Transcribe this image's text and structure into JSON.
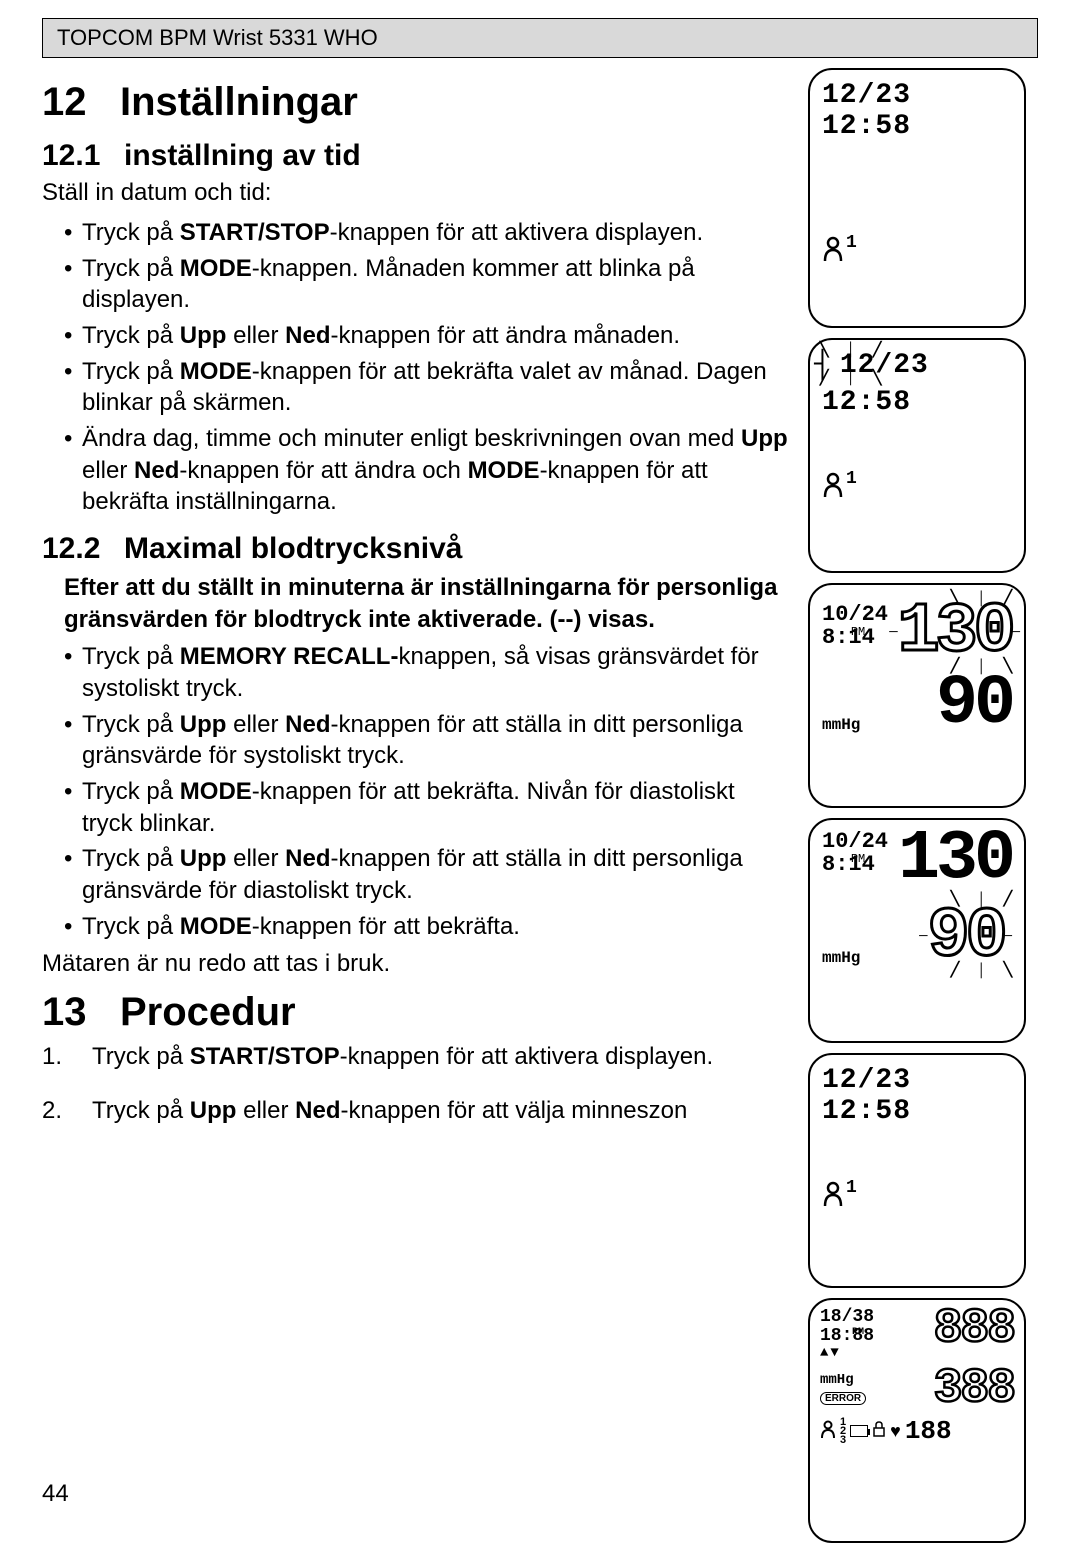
{
  "header": "TOPCOM BPM Wrist 5331 WHO",
  "page_number": "44",
  "s12": {
    "num": "12",
    "title": "Inställningar",
    "s1": {
      "num": "12.1",
      "title": "inställning av tid",
      "intro": "Ställ in datum och tid:",
      "items": [
        {
          "pre": "Tryck på ",
          "b": "START/STOP",
          "post": "-knappen för att aktivera displayen."
        },
        {
          "pre": "Tryck på ",
          "b": "MODE",
          "post": "-knappen. Månaden kommer att blinka på displayen."
        },
        {
          "pre": "Tryck på ",
          "b": "Upp",
          "mid": " eller ",
          "b2": "Ned",
          "post": "-knappen för att ändra månaden."
        },
        {
          "pre": "Tryck på ",
          "b": "MODE",
          "post": "-knappen för att bekräfta valet av månad.  Dagen blinkar på skärmen."
        },
        {
          "pre": "Ändra dag, timme och minuter enligt beskrivningen ovan med ",
          "b": "Upp",
          "mid": " eller ",
          "b2": "Ned",
          "mid2": "-knappen för att ändra och ",
          "b3": "MODE",
          "post": "-knappen för att bekräfta inställningarna."
        }
      ]
    },
    "s2": {
      "num": "12.2",
      "title": "Maximal blodtrycksnivå",
      "bold_intro": "Efter att du ställt in minuterna är inställningarna för personliga gränsvärden för blodtryck inte aktiverade.  (--) visas.",
      "items": [
        {
          "pre": "Tryck på ",
          "b": "MEMORY RECALL-",
          "post": "knappen, så visas gränsvärdet för systoliskt tryck."
        },
        {
          "pre": "Tryck på ",
          "b": "Upp",
          "mid": " eller ",
          "b2": "Ned",
          "post": "-knappen för att ställa in ditt personliga gränsvärde för systoliskt tryck."
        },
        {
          "pre": "Tryck på ",
          "b": "MODE",
          "post": "-knappen för att bekräfta.  Nivån för diastoliskt tryck blinkar."
        },
        {
          "pre": "Tryck på ",
          "b": "Upp",
          "mid": " eller ",
          "b2": "Ned",
          "post": "-knappen för att ställa in ditt personliga gränsvärde för diastoliskt tryck."
        },
        {
          "pre": "Tryck på ",
          "b": "MODE",
          "post": "-knappen för att bekräfta."
        }
      ],
      "closing": "Mätaren är nu redo att tas i bruk."
    }
  },
  "s13": {
    "num": "13",
    "title": "Procedur",
    "steps": [
      {
        "n": "1.",
        "pre": "Tryck på ",
        "b": "START/STOP",
        "post": "-knappen för att aktivera displayen."
      },
      {
        "n": "2.",
        "pre": "Tryck på ",
        "b": "Upp",
        "mid": " eller ",
        "b2": "Ned",
        "post": "-knappen för att välja minneszon"
      }
    ]
  },
  "lcd": {
    "d1": {
      "date": "12/23",
      "time": "12:58",
      "person": "1"
    },
    "d2": {
      "date": "12/23",
      "time": "12:58",
      "person": "1",
      "blink": "month"
    },
    "d3": {
      "date": "10/24",
      "time": "8:14",
      "pm": "PM",
      "sys": "130",
      "dia": "90",
      "unit": "mmHg",
      "blink": "sys"
    },
    "d4": {
      "date": "10/24",
      "time": "8:14",
      "pm": "PM",
      "sys": "130",
      "dia": "90",
      "unit": "mmHg",
      "blink": "dia"
    },
    "d5": {
      "date": "12/23",
      "time": "12:58",
      "person": "1"
    },
    "d6": {
      "date": "18/38",
      "time": "18:88",
      "pm": "PM",
      "sys": "888",
      "dia": "388",
      "unit": "mmHg",
      "error": "ERROR",
      "hr": "188",
      "nums": "123"
    }
  },
  "colors": {
    "bg": "#ffffff",
    "headerbg": "#d9d9d9",
    "text": "#000000"
  }
}
